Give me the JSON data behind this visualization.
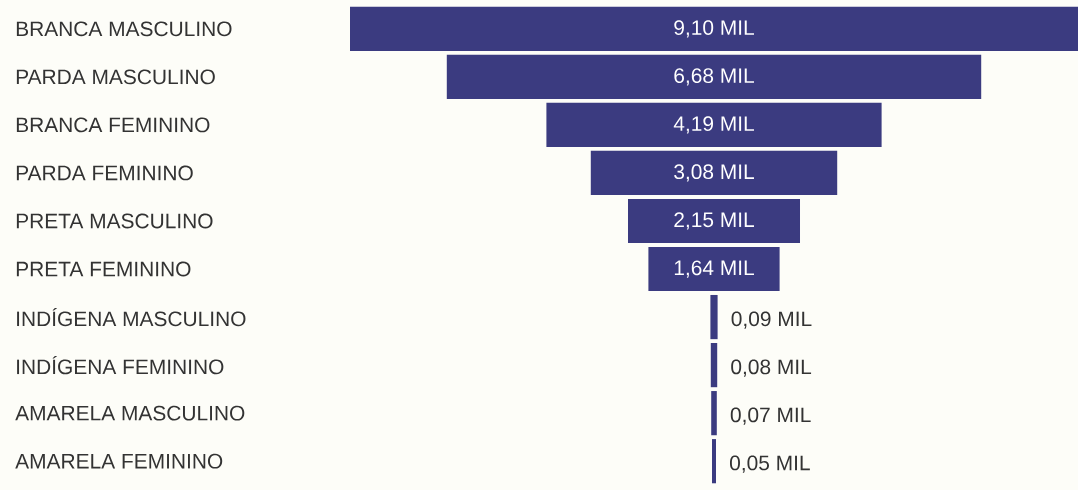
{
  "chart_data": {
    "type": "other",
    "categories": [
      "BRANCA MASCULINO",
      "PARDA MASCULINO",
      "BRANCA FEMININO",
      "PARDA FEMININO",
      "PRETA MASCULINO",
      "PRETA FEMININO",
      "INDÍGENA MASCULINO",
      "INDÍGENA FEMININO",
      "AMARELA MASCULINO",
      "AMARELA FEMININO"
    ],
    "values": [
      9.1,
      6.68,
      4.19,
      3.08,
      2.15,
      1.64,
      0.09,
      0.08,
      0.07,
      0.05
    ],
    "value_labels": [
      "9,10 MIL",
      "6,68 MIL",
      "4,19 MIL",
      "3,08 MIL",
      "2,15 MIL",
      "1,64 MIL",
      "0,09 MIL",
      "0,08 MIL",
      "0,07 MIL",
      "0,05 MIL"
    ],
    "color": "#3b3b80"
  }
}
